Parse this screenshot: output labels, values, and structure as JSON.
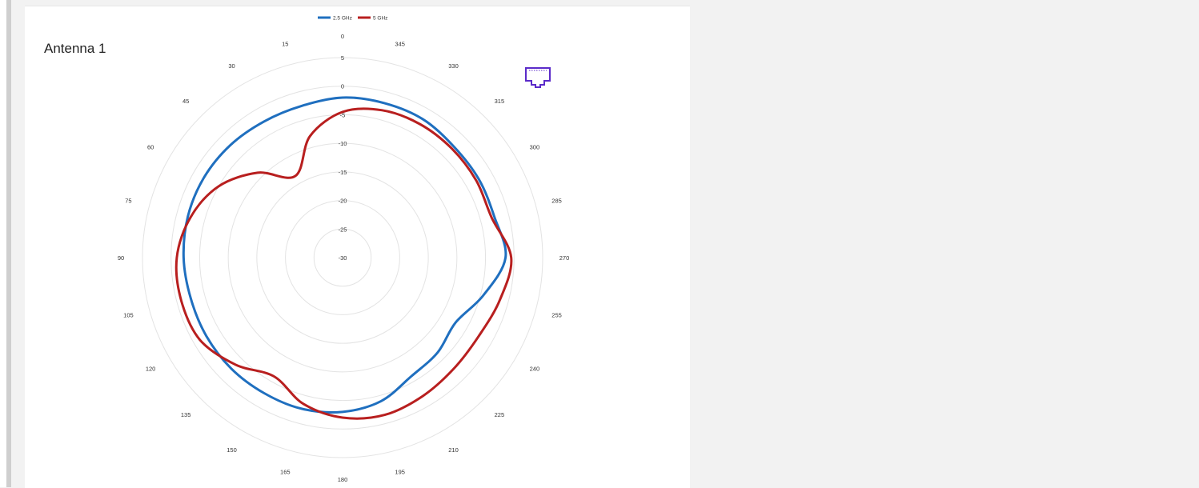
{
  "card": {
    "title": "Antenna 1"
  },
  "colors": {
    "series1": "#1f6fbf",
    "series2": "#b81f1f",
    "grid": "#e3e3e3",
    "icon": "#5b2bc9"
  },
  "icon": {
    "name": "ethernet-port-icon"
  },
  "chart_data": {
    "type": "polar-line",
    "title": "",
    "legend_position": "top",
    "grid": true,
    "radial_range": [
      -30,
      5
    ],
    "radial_ticks": [
      "5",
      "0",
      "-5",
      "-10",
      "-15",
      "-20",
      "-25",
      "-30"
    ],
    "angle_ticks": [
      "0",
      "15",
      "30",
      "45",
      "60",
      "75",
      "90",
      "105",
      "120",
      "135",
      "150",
      "165",
      "180",
      "195",
      "210",
      "225",
      "240",
      "255",
      "270",
      "285",
      "300",
      "315",
      "330",
      "345"
    ],
    "angles": [
      0,
      15,
      30,
      45,
      60,
      75,
      90,
      105,
      120,
      135,
      150,
      165,
      180,
      195,
      210,
      225,
      240,
      255,
      270,
      285,
      300,
      315,
      330,
      345
    ],
    "series": [
      {
        "name": "2.5 GHz",
        "values": [
          -2.0,
          -2.5,
          -2.5,
          -2.2,
          -2.0,
          -2.0,
          -2.2,
          -2.5,
          -2.5,
          -2.5,
          -2.6,
          -2.6,
          -3.0,
          -4.0,
          -6.0,
          -6.5,
          -7.2,
          -4.5,
          -1.5,
          -2.5,
          -2.5,
          -2.5,
          -2.0,
          -2.0
        ]
      },
      {
        "name": "5 GHz",
        "values": [
          -4.5,
          -8.0,
          -13.5,
          -9.0,
          -5.0,
          -2.5,
          -1.0,
          -0.8,
          -1.2,
          -3.5,
          -6.0,
          -3.5,
          -2.0,
          -1.5,
          -2.0,
          -2.5,
          -2.5,
          -1.5,
          -0.5,
          -3.0,
          -3.0,
          -3.0,
          -3.0,
          -3.3
        ]
      }
    ]
  }
}
